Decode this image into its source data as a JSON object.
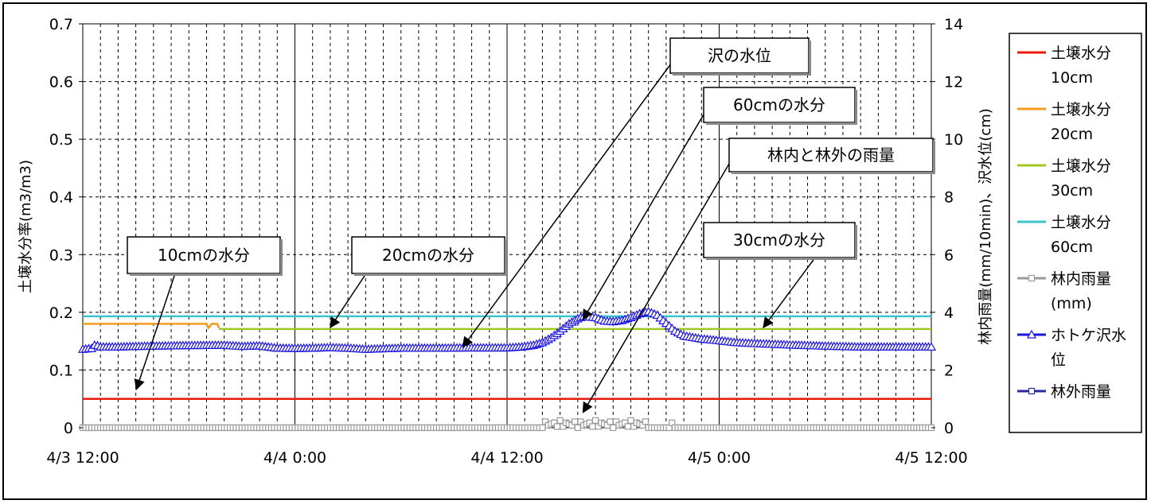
{
  "chart_data": {
    "type": "line",
    "x_tick_labels": [
      "4/3 12:00",
      "4/4 0:00",
      "4/4 12:00",
      "4/5 0:00",
      "4/5 12:00"
    ],
    "y_left": {
      "label": "土壌水分率(m3/m3)",
      "ticks": [
        "0",
        "0.1",
        "0.2",
        "0.3",
        "0.4",
        "0.5",
        "0.6",
        "0.7"
      ],
      "range": [
        0,
        0.7
      ]
    },
    "y_right": {
      "label": "林内雨量(mm/10min)、沢水位(cm)",
      "ticks": [
        "0",
        "2",
        "4",
        "6",
        "8",
        "10",
        "12",
        "14"
      ],
      "range": [
        0,
        14
      ]
    },
    "x_range_hours": [
      0,
      48
    ],
    "grid": true,
    "legend_position": "right",
    "series": [
      {
        "name": "土壌水分 10cm",
        "axis": "left",
        "color": "#e8180c",
        "marker": "none",
        "points": [
          [
            0,
            0.05
          ],
          [
            48,
            0.05
          ]
        ]
      },
      {
        "name": "土壌水分 20cm",
        "axis": "left",
        "color": "#f39c1c",
        "marker": "none",
        "points": [
          [
            0,
            0.18
          ],
          [
            7,
            0.18
          ],
          [
            7.1,
            0.173
          ],
          [
            7.3,
            0.18
          ],
          [
            7.6,
            0.18
          ],
          [
            7.7,
            0.173
          ]
        ]
      },
      {
        "name": "土壌水分 30cm",
        "axis": "left",
        "color": "#9cc820",
        "marker": "none",
        "points": [
          [
            7.7,
            0.171
          ],
          [
            48,
            0.171
          ]
        ]
      },
      {
        "name": "土壌水分 60cm",
        "axis": "left",
        "color": "#38c6cc",
        "marker": "none",
        "points": [
          [
            0,
            0.193
          ],
          [
            48,
            0.193
          ]
        ]
      },
      {
        "name": "林内雨量 (mm)",
        "axis": "right",
        "color": "#9a9a9a",
        "marker": "square",
        "points": [
          [
            0,
            0
          ],
          [
            26,
            0
          ],
          [
            26.2,
            0.25
          ],
          [
            26.4,
            0
          ],
          [
            26.6,
            0.25
          ],
          [
            26.8,
            0
          ],
          [
            27,
            0.25
          ],
          [
            27.2,
            0
          ],
          [
            27.4,
            0.25
          ],
          [
            27.6,
            0
          ],
          [
            27.8,
            0.25
          ],
          [
            28,
            0
          ],
          [
            28.2,
            0.25
          ],
          [
            28.4,
            0
          ],
          [
            28.6,
            0.25
          ],
          [
            28.8,
            0
          ],
          [
            29,
            0.25
          ],
          [
            29.2,
            0
          ],
          [
            29.4,
            0.25
          ],
          [
            29.6,
            0
          ],
          [
            29.8,
            0.25
          ],
          [
            30,
            0
          ],
          [
            30.2,
            0.25
          ],
          [
            30.4,
            0
          ],
          [
            30.6,
            0.25
          ],
          [
            30.8,
            0
          ],
          [
            31,
            0.25
          ],
          [
            31.2,
            0
          ],
          [
            31.4,
            0.25
          ],
          [
            31.6,
            0
          ],
          [
            31.8,
            0.25
          ],
          [
            32,
            0
          ],
          [
            33.2,
            0
          ],
          [
            33.3,
            0.25
          ],
          [
            33.4,
            0
          ],
          [
            48,
            0
          ]
        ]
      },
      {
        "name": "ホトケ沢水位",
        "axis": "right",
        "color": "#1c14e0",
        "marker": "triangle",
        "points": [
          [
            0,
            2.72
          ],
          [
            0.5,
            2.75
          ],
          [
            0.7,
            2.88
          ],
          [
            1,
            2.8
          ],
          [
            2,
            2.8
          ],
          [
            3,
            2.82
          ],
          [
            5,
            2.84
          ],
          [
            6,
            2.85
          ],
          [
            8,
            2.86
          ],
          [
            9,
            2.82
          ],
          [
            10,
            2.84
          ],
          [
            11,
            2.76
          ],
          [
            12,
            2.75
          ],
          [
            13,
            2.76
          ],
          [
            14,
            2.78
          ],
          [
            15,
            2.76
          ],
          [
            16,
            2.72
          ],
          [
            17,
            2.74
          ],
          [
            18,
            2.76
          ],
          [
            20,
            2.76
          ],
          [
            22,
            2.77
          ],
          [
            24,
            2.77
          ],
          [
            24.8,
            2.8
          ],
          [
            25.5,
            2.86
          ],
          [
            26,
            2.95
          ],
          [
            26.5,
            3.12
          ],
          [
            27,
            3.35
          ],
          [
            27.5,
            3.6
          ],
          [
            28,
            3.78
          ],
          [
            28.3,
            3.86
          ],
          [
            29,
            3.82
          ],
          [
            29.5,
            3.7
          ],
          [
            30,
            3.68
          ],
          [
            30.5,
            3.72
          ],
          [
            31,
            3.82
          ],
          [
            31.5,
            3.95
          ],
          [
            32,
            4.02
          ],
          [
            32.5,
            3.9
          ],
          [
            33,
            3.62
          ],
          [
            33.5,
            3.35
          ],
          [
            34,
            3.18
          ],
          [
            35,
            3.08
          ],
          [
            36,
            3.02
          ],
          [
            37,
            2.95
          ],
          [
            38,
            2.92
          ],
          [
            40,
            2.87
          ],
          [
            42,
            2.83
          ],
          [
            44,
            2.8
          ],
          [
            46,
            2.8
          ],
          [
            48,
            2.8
          ]
        ]
      },
      {
        "name": "林外雨量",
        "axis": "right",
        "color": "#2a2aa0",
        "marker": "square",
        "points": []
      }
    ],
    "annotations": [
      {
        "text": "沢の水位",
        "target": [
          21.5,
          2.8
        ]
      },
      {
        "text": "60cmの水分",
        "target": [
          28.3,
          3.75
        ]
      },
      {
        "text": "林内と林外の雨量",
        "target": [
          28.3,
          0.2
        ]
      },
      {
        "text": "10cmの水分",
        "target": [
          1.5,
          0.05
        ]
      },
      {
        "text": "20cmの水分",
        "target": [
          14,
          0.171
        ]
      },
      {
        "text": "30cmの水分",
        "target": [
          38.5,
          0.171
        ]
      }
    ]
  },
  "legend": [
    {
      "line1": "土壌水分",
      "line2": "10cm",
      "color": "#e8180c",
      "marker": "none"
    },
    {
      "line1": "土壌水分",
      "line2": "20cm",
      "color": "#f39c1c",
      "marker": "none"
    },
    {
      "line1": "土壌水分",
      "line2": "30cm",
      "color": "#9cc820",
      "marker": "none"
    },
    {
      "line1": "土壌水分",
      "line2": "60cm",
      "color": "#38c6cc",
      "marker": "none"
    },
    {
      "line1": "林内雨量",
      "line2": "(mm)",
      "color": "#9a9a9a",
      "marker": "square"
    },
    {
      "line1": "ホトケ沢水",
      "line2": "位",
      "color": "#1c14e0",
      "marker": "triangle"
    },
    {
      "line1": "林外雨量",
      "line2": "",
      "color": "#2a2aa0",
      "marker": "square"
    }
  ]
}
